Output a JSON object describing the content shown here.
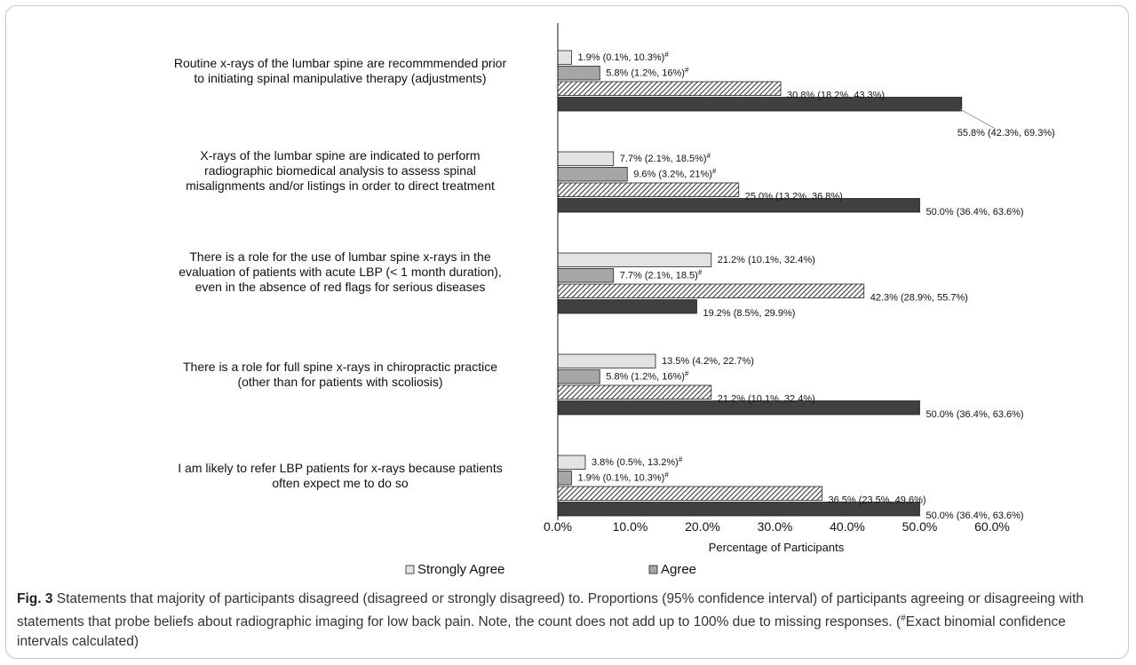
{
  "chart_data": {
    "type": "bar",
    "orientation": "horizontal",
    "categories": [
      [
        "Routine x-rays of the lumbar spine are recommmended prior",
        "to initiating spinal manipulative therapy (adjustments)"
      ],
      [
        "X-rays of the lumbar spine are indicated to perform",
        "radiographic biomedical analysis to assess spinal",
        "misalignments and/or listings in order to direct treatment"
      ],
      [
        "There is a role for the use of lumbar spine x-rays in the",
        "evaluation of patients with acute LBP (< 1 month duration),",
        "even in the absence of red flags for serious diseases"
      ],
      [
        "There is a role for full spine x-rays in chiropractic practice",
        "(other than for patients with scoliosis)"
      ],
      [
        "I am likely to refer LBP patients for x-rays because patients",
        "often expect me to do so"
      ]
    ],
    "series": [
      {
        "name": "Strongly Agree",
        "color": "#e3e3e3",
        "pattern": "solid",
        "values": [
          1.9,
          7.7,
          21.2,
          13.5,
          3.8
        ],
        "labels": [
          "1.9% (0.1%, 10.3%)#",
          "7.7% (2.1%, 18.5%)#",
          "21.2% (10.1%, 32.4%)",
          "13.5% (4.2%, 22.7%)",
          "3.8% (0.5%, 13.2%)#"
        ]
      },
      {
        "name": "Agree",
        "color": "#a6a6a6",
        "pattern": "solid",
        "values": [
          5.8,
          9.6,
          7.7,
          5.8,
          1.9
        ],
        "labels": [
          "5.8% (1.2%, 16%)#",
          "9.6% (3.2%, 21%)#",
          "7.7% (2.1%, 18.5)#",
          "5.8% (1.2%, 16%)#",
          "1.9% (0.1%, 10.3%)#"
        ]
      },
      {
        "color": "#4a4a4a",
        "pattern": "hatched",
        "values": [
          30.8,
          25.0,
          42.3,
          21.2,
          36.5
        ],
        "labels": [
          "30.8% (18.2%, 43.3%)",
          "25.0% (13.2%, 36.8%)",
          "42.3% (28.9%, 55.7%)",
          "21.2% (10.1%, 32.4%)",
          "36.5% (23.5%, 49.6%)"
        ]
      },
      {
        "color": "#404040",
        "pattern": "solid",
        "values": [
          55.8,
          50.0,
          19.2,
          50.0,
          50.0
        ],
        "labels": [
          "55.8% (42.3%, 69.3%)",
          "50.0% (36.4%, 63.6%)",
          "19.2% (8.5%, 29.9%)",
          "50.0% (36.4%, 63.6%)",
          "50.0% (36.4%, 63.6%)"
        ]
      }
    ],
    "xlabel": "Percentage of Participants",
    "xlim": [
      0,
      60
    ],
    "xticks": [
      "0.0%",
      "10.0%",
      "20.0%",
      "30.0%",
      "40.0%",
      "50.0%",
      "60.0%"
    ],
    "grid": false,
    "legend": {
      "placement": "bottom",
      "entries": [
        {
          "name": "Strongly Agree",
          "color": "#e3e3e3"
        },
        {
          "name": "Agree",
          "color": "#a6a6a6"
        }
      ]
    }
  },
  "caption": {
    "label": "Fig. 3",
    "text": " Statements that majority of participants disagreed (disagreed or strongly disagreed) to. Proportions (95% confidence interval) of participants agreeing or disagreeing with statements that probe beliefs about radiographic imaging for low back pain. Note, the count does not add up to 100% due to missing responses. (",
    "superscript": "#",
    "text_end": "Exact binomial confidence intervals calculated)"
  }
}
